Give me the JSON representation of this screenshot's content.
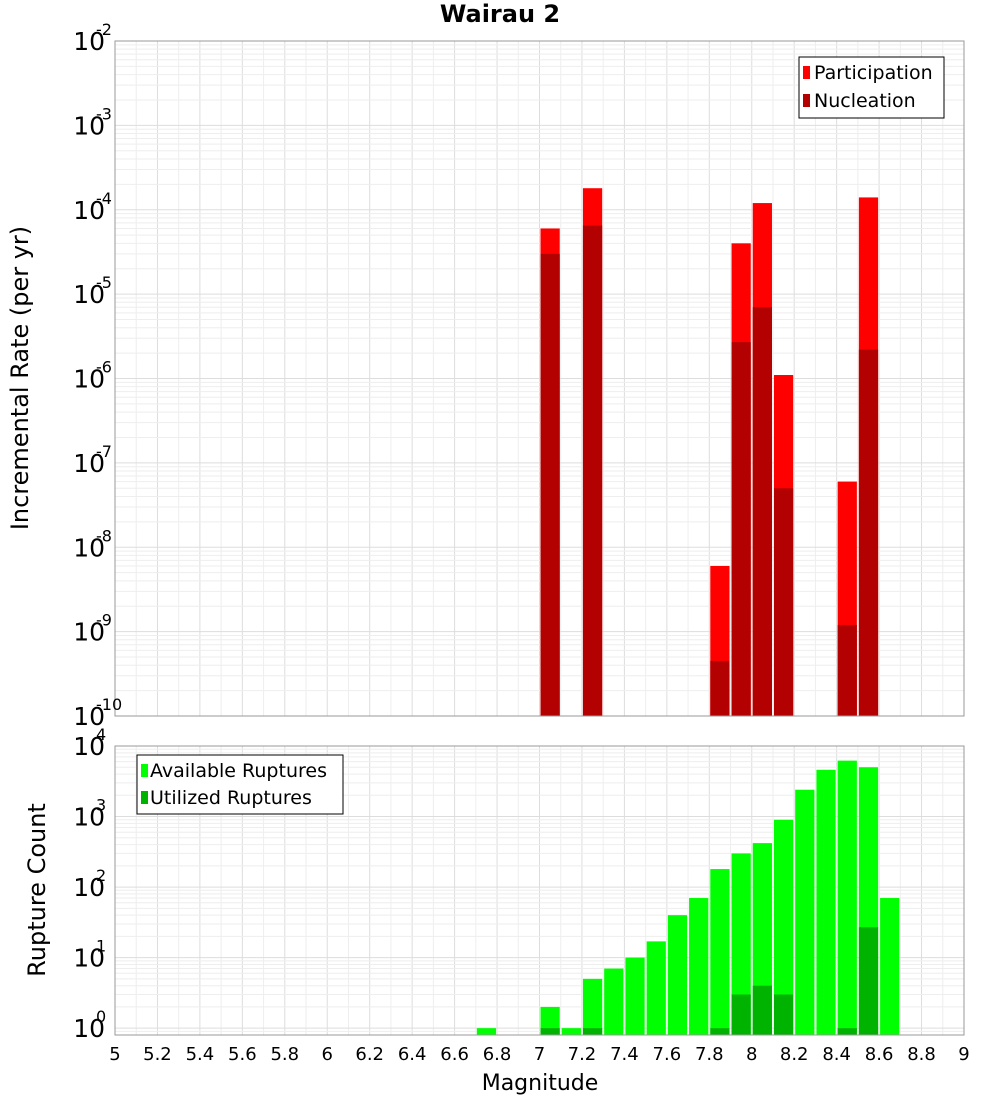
{
  "title": "Wairau 2",
  "colors": {
    "participation": "#ff0000",
    "nucleation": "#b30000",
    "available": "#00ff00",
    "utilized": "#00b300",
    "grid_major": "#dddddd",
    "grid_minor": "#eeeeee",
    "axis": "#999999"
  },
  "x_ticks": [
    "5",
    "5.2",
    "5.4",
    "5.6",
    "5.8",
    "6",
    "6.2",
    "6.4",
    "6.6",
    "6.8",
    "7",
    "7.2",
    "7.4",
    "7.6",
    "7.8",
    "8",
    "8.2",
    "8.4",
    "8.6",
    "8.8",
    "9"
  ],
  "chart_data": [
    {
      "type": "bar",
      "title": "Wairau 2",
      "xlabel": "",
      "ylabel": "Incremental Rate (per yr)",
      "yscale": "log",
      "xlim": [
        5,
        9
      ],
      "ylim": [
        1e-10,
        0.01
      ],
      "grid": true,
      "legend": "top-right",
      "y_ticks": [
        {
          "base": "10",
          "exp": "-2",
          "value": 0.01
        },
        {
          "base": "10",
          "exp": "-3",
          "value": 0.001
        },
        {
          "base": "10",
          "exp": "-4",
          "value": 0.0001
        },
        {
          "base": "10",
          "exp": "-5",
          "value": 1e-05
        },
        {
          "base": "10",
          "exp": "-6",
          "value": 1e-06
        },
        {
          "base": "10",
          "exp": "-7",
          "value": 1e-07
        },
        {
          "base": "10",
          "exp": "-8",
          "value": 1e-08
        },
        {
          "base": "10",
          "exp": "-9",
          "value": 1e-09
        },
        {
          "base": "10",
          "exp": "-10",
          "value": 1e-10
        }
      ],
      "x": [
        7.05,
        7.25,
        7.85,
        7.95,
        8.05,
        8.15,
        8.45,
        8.55
      ],
      "series": [
        {
          "name": "Participation",
          "values": [
            6e-05,
            0.00018,
            6e-09,
            4e-05,
            0.00012,
            1.1e-06,
            6e-08,
            0.00014
          ]
        },
        {
          "name": "Nucleation",
          "values": [
            3e-05,
            6.5e-05,
            4.5e-10,
            2.7e-06,
            7e-06,
            5e-08,
            1.2e-09,
            2.2e-06
          ]
        }
      ]
    },
    {
      "type": "bar",
      "xlabel": "Magnitude",
      "ylabel": "Rupture Count",
      "yscale": "log",
      "xlim": [
        5,
        9
      ],
      "ylim": [
        0.8,
        10000.0
      ],
      "grid": true,
      "legend": "top-left",
      "y_ticks": [
        {
          "base": "10",
          "exp": "4",
          "value": 10000.0
        },
        {
          "base": "10",
          "exp": "3",
          "value": 1000.0
        },
        {
          "base": "10",
          "exp": "2",
          "value": 100.0
        },
        {
          "base": "10",
          "exp": "1",
          "value": 10.0
        },
        {
          "base": "10",
          "exp": "0",
          "value": 1
        }
      ],
      "x": [
        6.75,
        7.05,
        7.15,
        7.25,
        7.35,
        7.45,
        7.55,
        7.65,
        7.75,
        7.85,
        7.95,
        8.05,
        8.15,
        8.25,
        8.35,
        8.45,
        8.55,
        8.65
      ],
      "series": [
        {
          "name": "Available Ruptures",
          "values": [
            1,
            2,
            1,
            5,
            7,
            10,
            17,
            40,
            70,
            180,
            300,
            420,
            900,
            2400,
            4600,
            6200,
            5000,
            70
          ]
        },
        {
          "name": "Utilized Ruptures",
          "values": [
            0,
            1,
            0,
            1,
            0,
            0,
            0,
            0,
            0,
            1,
            3,
            4,
            3,
            0,
            0,
            1,
            27,
            0
          ]
        }
      ]
    }
  ]
}
